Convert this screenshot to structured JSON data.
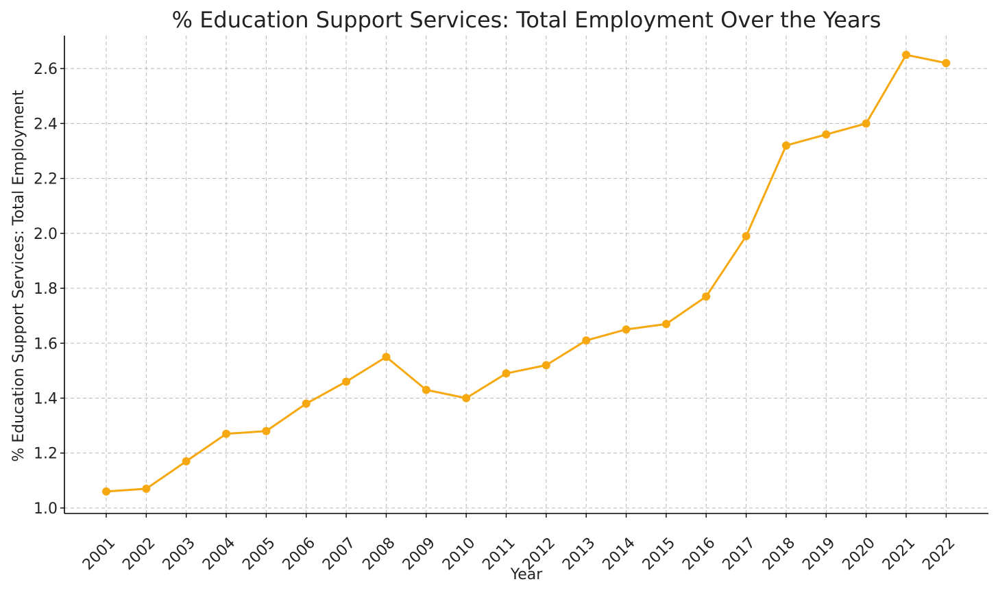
{
  "chart_data": {
    "type": "line",
    "title": "% Education Support Services: Total Employment Over the Years",
    "xlabel": "Year",
    "ylabel": "% Education Support Services: Total Employment",
    "categories": [
      "2001",
      "2002",
      "2003",
      "2004",
      "2005",
      "2006",
      "2007",
      "2008",
      "2009",
      "2010",
      "2011",
      "2012",
      "2013",
      "2014",
      "2015",
      "2016",
      "2017",
      "2018",
      "2019",
      "2020",
      "2021",
      "2022"
    ],
    "series": [
      {
        "values": [
          1.06,
          1.07,
          1.17,
          1.27,
          1.28,
          1.38,
          1.46,
          1.55,
          1.43,
          1.4,
          1.49,
          1.52,
          1.61,
          1.65,
          1.67,
          1.77,
          1.99,
          2.32,
          2.36,
          2.4,
          2.65,
          2.62
        ],
        "color": "#f5a80f"
      }
    ],
    "ylim": [
      0.98,
      2.72
    ],
    "yticks": [
      "1.0",
      "1.2",
      "1.4",
      "1.6",
      "1.8",
      "2.0",
      "2.2",
      "2.4",
      "2.6"
    ],
    "grid": true,
    "marker": "circle"
  }
}
